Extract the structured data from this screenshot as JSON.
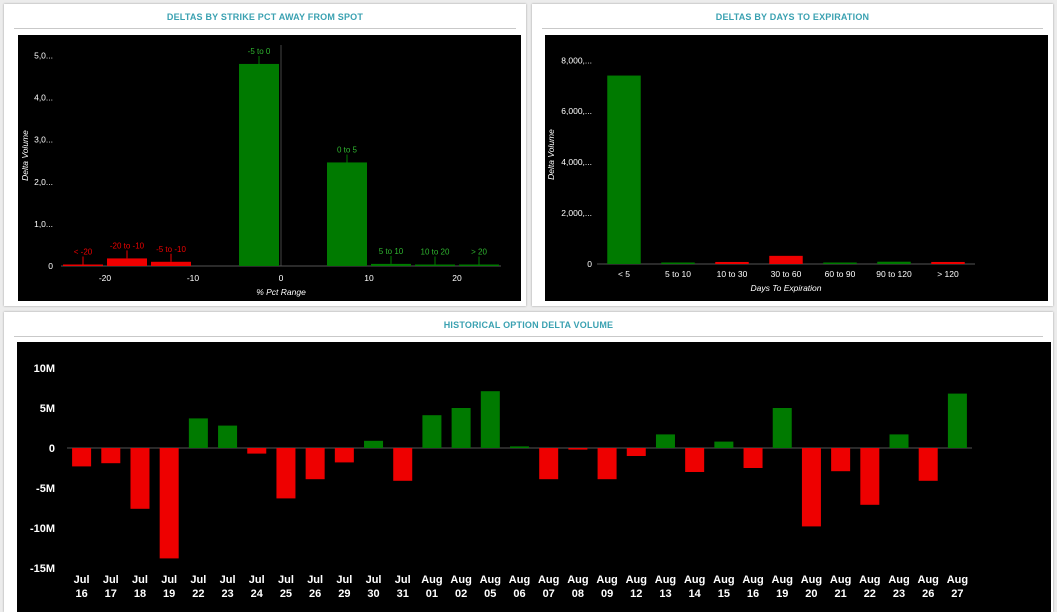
{
  "colors": {
    "positive": "#007a00",
    "negative": "#ee0000",
    "title": "#3aa1b1",
    "bg": "#000000",
    "axis_text": "#ffffff"
  },
  "charts": {
    "strike": {
      "title": "DELTAS BY STRIKE PCT AWAY FROM SPOT",
      "chart_data": {
        "type": "bar",
        "xlabel": "% Pct Range",
        "ylabel": "Delta Volume",
        "xlim": [
          -25,
          25
        ],
        "ylim": [
          0,
          5250
        ],
        "x_ticks": [
          {
            "v": -20,
            "label": "-20"
          },
          {
            "v": -10,
            "label": "-10"
          },
          {
            "v": 0,
            "label": "0"
          },
          {
            "v": 10,
            "label": "10"
          },
          {
            "v": 20,
            "label": "20"
          }
        ],
        "y_ticks": [
          {
            "v": 0,
            "label": "0"
          },
          {
            "v": 1000,
            "label": "1,0..."
          },
          {
            "v": 2000,
            "label": "2,0..."
          },
          {
            "v": 3000,
            "label": "3,0..."
          },
          {
            "v": 4000,
            "label": "4,0..."
          },
          {
            "v": 5000,
            "label": "5,0..."
          }
        ],
        "bars": [
          {
            "x0": -25,
            "x1": -20,
            "value": 30,
            "label": "< -20",
            "sign": "negative"
          },
          {
            "x0": -20,
            "x1": -15,
            "value": 180,
            "label": "-20 to -10",
            "sign": "negative"
          },
          {
            "x0": -15,
            "x1": -10,
            "value": 100,
            "label": "-5 to -10",
            "sign": "negative"
          },
          {
            "x0": -5,
            "x1": 0,
            "value": 4800,
            "label": "-5 to 0",
            "sign": "positive"
          },
          {
            "x0": 5,
            "x1": 10,
            "value": 2460,
            "label": "0 to 5",
            "sign": "positive"
          },
          {
            "x0": 10,
            "x1": 15,
            "value": 50,
            "label": "5 to 10",
            "sign": "positive"
          },
          {
            "x0": 15,
            "x1": 20,
            "value": 30,
            "label": "10 to 20",
            "sign": "positive"
          },
          {
            "x0": 20,
            "x1": 25,
            "value": 20,
            "label": "> 20",
            "sign": "positive"
          }
        ]
      }
    },
    "expiry": {
      "title": "DELTAS BY DAYS TO EXPIRATION",
      "chart_data": {
        "type": "bar",
        "xlabel": "Days To Expiration",
        "ylabel": "Delta Volume",
        "ylim": [
          0,
          8600
        ],
        "y_ticks": [
          {
            "v": 0,
            "label": "0"
          },
          {
            "v": 2000,
            "label": "2,000,..."
          },
          {
            "v": 4000,
            "label": "4,000,..."
          },
          {
            "v": 6000,
            "label": "6,000,..."
          },
          {
            "v": 8000,
            "label": "8,000,..."
          }
        ],
        "categories": [
          "< 5",
          "5 to 10",
          "10 to 30",
          "30 to 60",
          "60 to 90",
          "90 to 120",
          "> 120"
        ],
        "values": [
          7400,
          40,
          80,
          320,
          30,
          90,
          80
        ],
        "signs": [
          "positive",
          "positive",
          "negative",
          "negative",
          "positive",
          "positive",
          "negative"
        ]
      }
    },
    "history": {
      "title": "HISTORICAL OPTION DELTA VOLUME",
      "chart_data": {
        "type": "bar",
        "ylim": [
          -15,
          10
        ],
        "y_ticks": [
          {
            "v": 10,
            "label": "10M"
          },
          {
            "v": 5,
            "label": "5M"
          },
          {
            "v": 0,
            "label": "0"
          },
          {
            "v": -5,
            "label": "-5M"
          },
          {
            "v": -10,
            "label": "-10M"
          },
          {
            "v": -15,
            "label": "-15M"
          }
        ],
        "categories": [
          [
            "Jul",
            "16"
          ],
          [
            "Jul",
            "17"
          ],
          [
            "Jul",
            "18"
          ],
          [
            "Jul",
            "19"
          ],
          [
            "Jul",
            "22"
          ],
          [
            "Jul",
            "23"
          ],
          [
            "Jul",
            "24"
          ],
          [
            "Jul",
            "25"
          ],
          [
            "Jul",
            "26"
          ],
          [
            "Jul",
            "29"
          ],
          [
            "Jul",
            "30"
          ],
          [
            "Jul",
            "31"
          ],
          [
            "Aug",
            "01"
          ],
          [
            "Aug",
            "02"
          ],
          [
            "Aug",
            "05"
          ],
          [
            "Aug",
            "06"
          ],
          [
            "Aug",
            "07"
          ],
          [
            "Aug",
            "08"
          ],
          [
            "Aug",
            "09"
          ],
          [
            "Aug",
            "12"
          ],
          [
            "Aug",
            "13"
          ],
          [
            "Aug",
            "14"
          ],
          [
            "Aug",
            "15"
          ],
          [
            "Aug",
            "16"
          ],
          [
            "Aug",
            "19"
          ],
          [
            "Aug",
            "20"
          ],
          [
            "Aug",
            "21"
          ],
          [
            "Aug",
            "22"
          ],
          [
            "Aug",
            "23"
          ],
          [
            "Aug",
            "26"
          ],
          [
            "Aug",
            "27"
          ]
        ],
        "values": [
          -2.3,
          -1.9,
          -7.6,
          -13.8,
          3.7,
          2.8,
          -0.7,
          -6.3,
          -3.9,
          -1.8,
          0.9,
          -4.1,
          4.1,
          5.0,
          7.1,
          0.2,
          -3.9,
          -0.2,
          -3.9,
          -1.0,
          1.7,
          -3.0,
          0.8,
          -2.5,
          5.0,
          -9.8,
          -2.9,
          -7.1,
          1.7,
          -4.1,
          6.8
        ]
      }
    }
  }
}
